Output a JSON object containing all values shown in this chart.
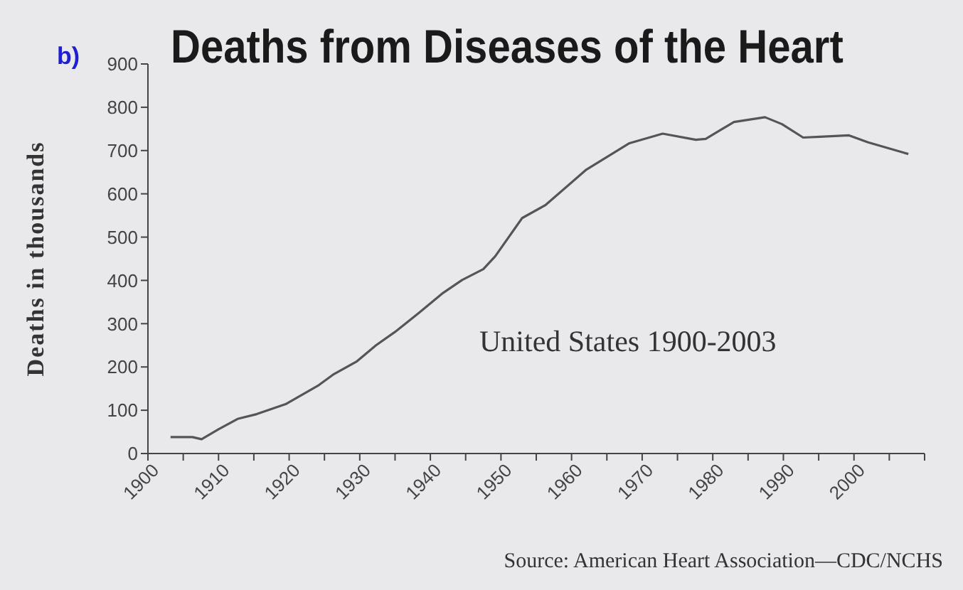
{
  "chart_data": {
    "type": "line",
    "title": "Deaths from Diseases of the Heart",
    "ylabel": "Deaths in thousands",
    "annotations": [
      "b)",
      "United States 1900-2003",
      "Source: American Heart Association—CDC/NCHS"
    ],
    "x": [
      1903.2,
      1906.3,
      1907.6,
      1910,
      1912.7,
      1915.4,
      1919.5,
      1924.2,
      1926.2,
      1929.6,
      1932.3,
      1935,
      1938.4,
      1941.8,
      1944.5,
      1947.5,
      1949.2,
      1953,
      1956.3,
      1962.1,
      1968.2,
      1972.9,
      1977.6,
      1979,
      1983,
      1987.4,
      1989.8,
      1992.8,
      1995.2,
      1999.3,
      2002,
      2007.7
    ],
    "series": [
      {
        "color": "#555555",
        "values": [
          38,
          38,
          33,
          56,
          80,
          91,
          114,
          158,
          182,
          213,
          250,
          281,
          325,
          371,
          401,
          426,
          456,
          544,
          574,
          656,
          717,
          739,
          725,
          727,
          766,
          777,
          761,
          730,
          732,
          735,
          719,
          692
        ]
      }
    ],
    "xlim": [
      1900,
      2010
    ],
    "xticks": [
      1900,
      {
        "value": 1905,
        "label": null
      },
      1910,
      {
        "value": 1915,
        "label": null
      },
      1920,
      {
        "value": 1925,
        "label": null
      },
      1930,
      {
        "value": 1935,
        "label": null
      },
      1940,
      {
        "value": 1945,
        "label": null
      },
      1950,
      {
        "value": 1955,
        "label": null
      },
      1960,
      {
        "value": 1965,
        "label": null
      },
      1970,
      {
        "value": 1975,
        "label": null
      },
      1980,
      {
        "value": 1985,
        "label": null
      },
      1990,
      {
        "value": 1995,
        "label": null
      },
      2000,
      {
        "value": 2005,
        "label": null
      },
      {
        "value": 2010,
        "label": null
      }
    ],
    "ylim": [
      0,
      900
    ],
    "yticks": [
      0,
      100,
      200,
      300,
      400,
      500,
      600,
      700,
      800,
      900
    ],
    "grid": false,
    "legend": false,
    "marker": "none",
    "line_style": "solid"
  }
}
